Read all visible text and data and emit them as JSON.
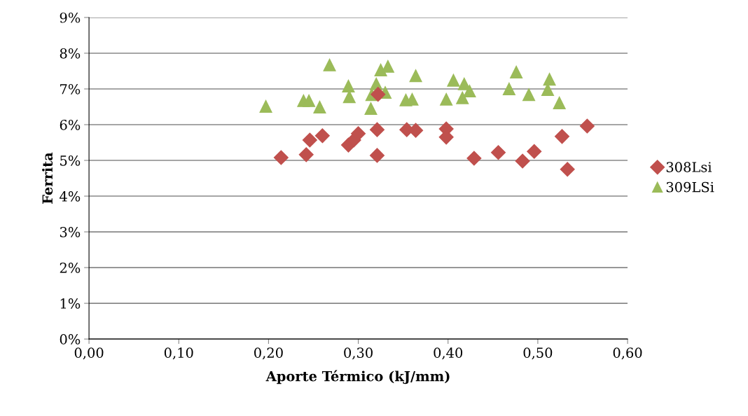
{
  "chart_data": {
    "type": "scatter",
    "xlabel": "Aporte Térmico (kJ/mm)",
    "ylabel": "Ferrita",
    "xlim": [
      0,
      0.6
    ],
    "ylim": [
      0,
      9
    ],
    "xticks": [
      {
        "value": 0,
        "label": "0,00"
      },
      {
        "value": 0.1,
        "label": "0,10"
      },
      {
        "value": 0.2,
        "label": "0,20"
      },
      {
        "value": 0.3,
        "label": "0,30"
      },
      {
        "value": 0.4,
        "label": "0,40"
      },
      {
        "value": 0.5,
        "label": "0,50"
      },
      {
        "value": 0.6,
        "label": "0,60"
      }
    ],
    "yticks": [
      {
        "value": 0,
        "label": "0%"
      },
      {
        "value": 1,
        "label": "1%"
      },
      {
        "value": 2,
        "label": "2%"
      },
      {
        "value": 3,
        "label": "3%"
      },
      {
        "value": 4,
        "label": "4%"
      },
      {
        "value": 5,
        "label": "5%"
      },
      {
        "value": 6,
        "label": "6%"
      },
      {
        "value": 7,
        "label": "7%"
      },
      {
        "value": 8,
        "label": "8%"
      },
      {
        "value": 9,
        "label": "9%"
      }
    ],
    "grid": "y",
    "legend": "right",
    "series": [
      {
        "name": "308Lsi",
        "color": "#c0504d",
        "marker": "diamond",
        "x": [
          0.214,
          0.242,
          0.246,
          0.26,
          0.289,
          0.295,
          0.3,
          0.321,
          0.321,
          0.322,
          0.354,
          0.364,
          0.398,
          0.398,
          0.429,
          0.456,
          0.483,
          0.496,
          0.527,
          0.533,
          0.555
        ],
        "values": [
          5.08,
          5.16,
          5.57,
          5.69,
          5.43,
          5.57,
          5.75,
          5.86,
          5.14,
          6.85,
          5.86,
          5.84,
          5.88,
          5.65,
          5.06,
          5.22,
          4.98,
          5.25,
          5.67,
          4.75,
          5.96
        ]
      },
      {
        "name": "309LSi",
        "color": "#9bbb59",
        "marker": "triangle",
        "x": [
          0.197,
          0.239,
          0.245,
          0.257,
          0.268,
          0.289,
          0.29,
          0.314,
          0.315,
          0.32,
          0.325,
          0.333,
          0.33,
          0.353,
          0.36,
          0.364,
          0.398,
          0.406,
          0.418,
          0.424,
          0.416,
          0.476,
          0.468,
          0.49,
          0.513,
          0.511,
          0.524
        ],
        "values": [
          6.51,
          6.67,
          6.67,
          6.49,
          7.67,
          7.08,
          6.78,
          6.45,
          6.84,
          7.14,
          7.53,
          7.63,
          6.9,
          6.69,
          6.71,
          7.37,
          6.71,
          7.24,
          7.14,
          6.94,
          6.75,
          7.47,
          7.0,
          6.84,
          7.27,
          6.98,
          6.61
        ]
      }
    ]
  }
}
